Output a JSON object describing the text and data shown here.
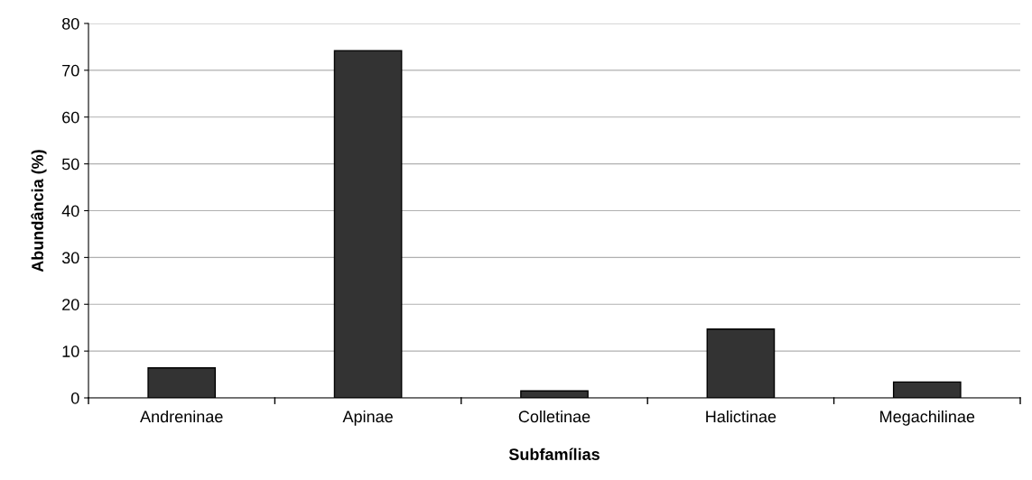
{
  "chart_data": {
    "type": "bar",
    "xlabel": "Subfamílias",
    "ylabel": "Abundância (%)",
    "categories": [
      "Andreninae",
      "Apinae",
      "Colletinae",
      "Halictinae",
      "Megachilinae"
    ],
    "values": [
      6.4,
      74.2,
      1.5,
      14.7,
      3.4
    ],
    "color": "#333333",
    "ylim": [
      0,
      80
    ],
    "yticks": [
      0,
      10,
      20,
      30,
      40,
      50,
      60,
      70,
      80
    ],
    "grid": "y",
    "legend": false
  }
}
